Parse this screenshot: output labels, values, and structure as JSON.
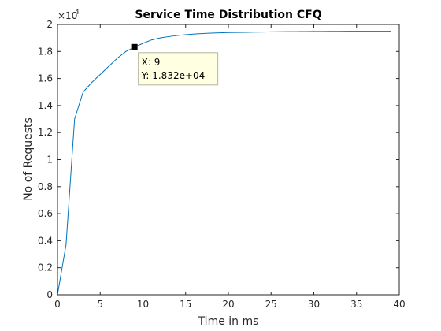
{
  "chart_data": {
    "type": "line",
    "title": "Service Time Distribution CFQ",
    "xlabel": "Time in ms",
    "ylabel": "No of Requests",
    "xlim": [
      0,
      40
    ],
    "ylim": [
      0,
      20000
    ],
    "xticks": [
      0,
      5,
      10,
      15,
      20,
      25,
      30,
      35,
      40
    ],
    "yticks": [
      0,
      2000,
      4000,
      6000,
      8000,
      10000,
      12000,
      14000,
      16000,
      18000,
      20000
    ],
    "ytick_labels": [
      "0",
      "0.2",
      "0.4",
      "0.6",
      "0.8",
      "1",
      "1.2",
      "1.4",
      "1.6",
      "1.8",
      "2"
    ],
    "y_exponent": "×10",
    "y_exponent_power": "4",
    "grid": false,
    "series": [
      {
        "color": "#0072bd",
        "x": [
          0,
          1,
          2,
          3,
          4,
          5,
          6,
          7,
          8,
          9,
          10,
          11,
          12,
          13,
          14,
          15,
          16,
          17,
          18,
          19,
          20,
          21,
          22,
          23,
          24,
          25,
          26,
          27,
          28,
          29,
          30,
          31,
          32,
          33,
          34,
          35,
          36,
          37,
          38,
          39
        ],
        "y": [
          0,
          3700,
          13000,
          15000,
          15700,
          16300,
          16900,
          17500,
          18000,
          18320,
          18600,
          18850,
          19000,
          19100,
          19180,
          19240,
          19290,
          19330,
          19360,
          19380,
          19400,
          19410,
          19420,
          19430,
          19440,
          19450,
          19460,
          19465,
          19470,
          19475,
          19480,
          19485,
          19490,
          19493,
          19495,
          19497,
          19498,
          19499,
          19500,
          19500
        ]
      }
    ],
    "datatip": {
      "x": 9,
      "y": 18320,
      "x_text": "X: 9",
      "y_text": "Y: 1.832e+04"
    }
  }
}
